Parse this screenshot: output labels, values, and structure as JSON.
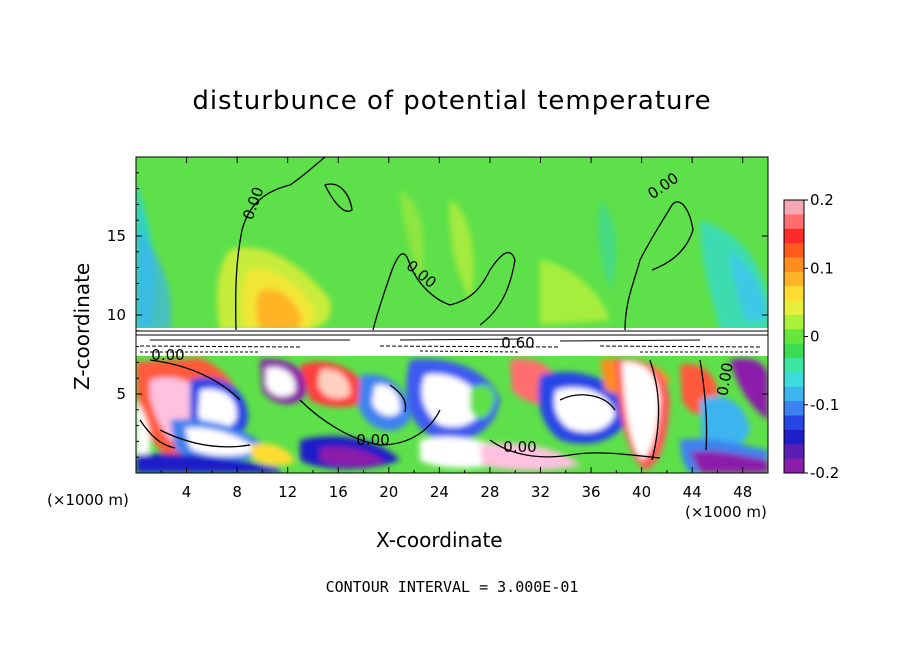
{
  "chart_data": {
    "type": "heatmap",
    "title": "disturbunce of potential temperature",
    "xlabel": "X-coordinate",
    "ylabel": "Z-coordinate",
    "x_unit": "(×1000 m)",
    "xlim": [
      0,
      50
    ],
    "ylim": [
      0,
      20
    ],
    "x_ticks": [
      4,
      8,
      12,
      16,
      20,
      24,
      28,
      32,
      36,
      40,
      44,
      48
    ],
    "y_ticks": [
      5,
      10,
      15
    ],
    "colorbar": {
      "range": [
        -0.2,
        0.2
      ],
      "tick_labels": [
        "0.2",
        "0.1",
        "0",
        "-0.1",
        "-0.2"
      ],
      "colors": [
        "#f6a7b6",
        "#ff6e6e",
        "#ff2a2a",
        "#ff5a1e",
        "#ff8c1e",
        "#ffb428",
        "#ffdc32",
        "#e6f03c",
        "#aaf03c",
        "#64e63c",
        "#3cdc50",
        "#3ce6a0",
        "#3cdcdc",
        "#3cb4f0",
        "#3c82f0",
        "#2846e6",
        "#1e1ec8",
        "#5a1eb4",
        "#8c1eaa"
      ]
    },
    "contour_labels": [
      "0.00",
      "0.00",
      "0.00",
      "0.00",
      "0.60",
      "0.00",
      "0.00",
      "0.00"
    ],
    "contour_interval": "CONTOUR INTERVAL = 3.000E-01",
    "grid": false,
    "legend": "colorbar right"
  }
}
